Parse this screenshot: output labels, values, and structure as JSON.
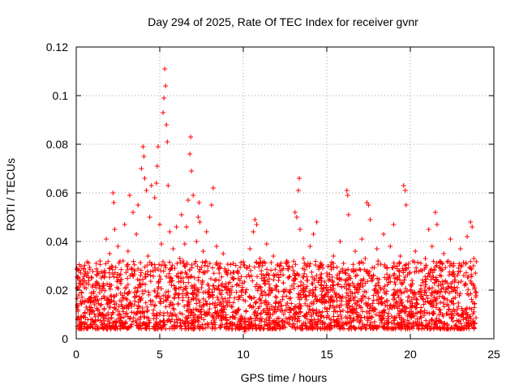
{
  "chart_data": {
    "type": "scatter",
    "title": "Day 294 of 2025, Rate Of TEC Index for receiver gvnr",
    "xlabel": "GPS time / hours",
    "ylabel": "ROTI / TECUs",
    "xlim": [
      0,
      25
    ],
    "ylim": [
      0,
      0.12
    ],
    "xticks": [
      "0",
      "5",
      "10",
      "15",
      "20",
      "25"
    ],
    "yticks": [
      "0",
      "0.02",
      "0.04",
      "0.06",
      "0.08",
      "0.1",
      "0.12"
    ],
    "grid": true,
    "marker": "+",
    "color": "#ff0000",
    "series": [
      {
        "points": [
          [
            0.05,
            0.029
          ],
          [
            0.1,
            0.012
          ],
          [
            0.15,
            0.018
          ],
          [
            0.2,
            0.024
          ],
          [
            0.3,
            0.009
          ],
          [
            0.4,
            0.015
          ],
          [
            0.5,
            0.021
          ],
          [
            0.6,
            0.013
          ],
          [
            0.7,
            0.027
          ],
          [
            0.8,
            0.011
          ],
          [
            0.9,
            0.017
          ],
          [
            1.0,
            0.022
          ],
          [
            1.1,
            0.014
          ],
          [
            1.2,
            0.031
          ],
          [
            1.3,
            0.012
          ],
          [
            1.4,
            0.019
          ],
          [
            1.5,
            0.025
          ],
          [
            1.6,
            0.01
          ],
          [
            1.7,
            0.028
          ],
          [
            1.8,
            0.041
          ],
          [
            1.9,
            0.016
          ],
          [
            2.0,
            0.035
          ],
          [
            2.1,
            0.022
          ],
          [
            2.2,
            0.06
          ],
          [
            2.25,
            0.056
          ],
          [
            2.3,
            0.045
          ],
          [
            2.4,
            0.018
          ],
          [
            2.5,
            0.038
          ],
          [
            2.6,
            0.026
          ],
          [
            2.7,
            0.014
          ],
          [
            2.8,
            0.032
          ],
          [
            2.9,
            0.047
          ],
          [
            3.0,
            0.021
          ],
          [
            3.1,
            0.036
          ],
          [
            3.2,
            0.059
          ],
          [
            3.3,
            0.029
          ],
          [
            3.4,
            0.052
          ],
          [
            3.5,
            0.017
          ],
          [
            3.6,
            0.043
          ],
          [
            3.7,
            0.055
          ],
          [
            3.8,
            0.024
          ],
          [
            3.9,
            0.07
          ],
          [
            4.0,
            0.079
          ],
          [
            4.05,
            0.075
          ],
          [
            4.1,
            0.066
          ],
          [
            4.2,
            0.061
          ],
          [
            4.3,
            0.034
          ],
          [
            4.4,
            0.05
          ],
          [
            4.5,
            0.063
          ],
          [
            4.6,
            0.028
          ],
          [
            4.7,
            0.058
          ],
          [
            4.8,
            0.064
          ],
          [
            4.85,
            0.071
          ],
          [
            4.9,
            0.079
          ],
          [
            5.0,
            0.047
          ],
          [
            5.1,
            0.039
          ],
          [
            5.2,
            0.093
          ],
          [
            5.25,
            0.099
          ],
          [
            5.3,
            0.111
          ],
          [
            5.35,
            0.104
          ],
          [
            5.4,
            0.088
          ],
          [
            5.45,
            0.081
          ],
          [
            5.5,
            0.063
          ],
          [
            5.6,
            0.044
          ],
          [
            5.7,
            0.022
          ],
          [
            5.8,
            0.037
          ],
          [
            5.9,
            0.029
          ],
          [
            6.0,
            0.046
          ],
          [
            6.1,
            0.018
          ],
          [
            6.2,
            0.033
          ],
          [
            6.3,
            0.051
          ],
          [
            6.4,
            0.025
          ],
          [
            6.5,
            0.039
          ],
          [
            6.6,
            0.046
          ],
          [
            6.7,
            0.057
          ],
          [
            6.8,
            0.076
          ],
          [
            6.85,
            0.083
          ],
          [
            6.9,
            0.069
          ],
          [
            7.0,
            0.059
          ],
          [
            7.1,
            0.031
          ],
          [
            7.2,
            0.04
          ],
          [
            7.3,
            0.05
          ],
          [
            7.35,
            0.056
          ],
          [
            7.4,
            0.048
          ],
          [
            7.5,
            0.021
          ],
          [
            7.6,
            0.036
          ],
          [
            7.7,
            0.027
          ],
          [
            7.8,
            0.044
          ],
          [
            7.9,
            0.019
          ],
          [
            8.0,
            0.031
          ],
          [
            8.1,
            0.055
          ],
          [
            8.2,
            0.062
          ],
          [
            8.3,
            0.024
          ],
          [
            8.4,
            0.038
          ],
          [
            8.5,
            0.016
          ],
          [
            8.6,
            0.029
          ],
          [
            8.7,
            0.022
          ],
          [
            8.8,
            0.035
          ],
          [
            8.9,
            0.013
          ],
          [
            9.0,
            0.027
          ],
          [
            9.2,
            0.018
          ],
          [
            9.4,
            0.031
          ],
          [
            9.6,
            0.011
          ],
          [
            9.8,
            0.024
          ],
          [
            10.0,
            0.016
          ],
          [
            10.1,
            0.003
          ],
          [
            10.2,
            0.029
          ],
          [
            10.4,
            0.037
          ],
          [
            10.6,
            0.044
          ],
          [
            10.7,
            0.049
          ],
          [
            10.8,
            0.047
          ],
          [
            11.0,
            0.033
          ],
          [
            11.2,
            0.026
          ],
          [
            11.4,
            0.039
          ],
          [
            11.6,
            0.021
          ],
          [
            11.8,
            0.034
          ],
          [
            12.0,
            0.017
          ],
          [
            12.2,
            0.028
          ],
          [
            12.4,
            0.023
          ],
          [
            12.6,
            0.032
          ],
          [
            12.8,
            0.019
          ],
          [
            13.0,
            0.028
          ],
          [
            13.1,
            0.052
          ],
          [
            13.2,
            0.05
          ],
          [
            13.3,
            0.061
          ],
          [
            13.35,
            0.066
          ],
          [
            13.4,
            0.045
          ],
          [
            13.6,
            0.033
          ],
          [
            13.8,
            0.024
          ],
          [
            14.0,
            0.038
          ],
          [
            14.2,
            0.043
          ],
          [
            14.4,
            0.048
          ],
          [
            14.6,
            0.03
          ],
          [
            14.8,
            0.021
          ],
          [
            15.0,
            0.027
          ],
          [
            15.2,
            0.015
          ],
          [
            15.4,
            0.034
          ],
          [
            15.6,
            0.025
          ],
          [
            15.8,
            0.04
          ],
          [
            16.0,
            0.031
          ],
          [
            16.2,
            0.061
          ],
          [
            16.25,
            0.059
          ],
          [
            16.3,
            0.051
          ],
          [
            16.5,
            0.028
          ],
          [
            16.7,
            0.036
          ],
          [
            16.9,
            0.022
          ],
          [
            17.1,
            0.041
          ],
          [
            17.3,
            0.033
          ],
          [
            17.4,
            0.056
          ],
          [
            17.5,
            0.055
          ],
          [
            17.6,
            0.049
          ],
          [
            17.8,
            0.026
          ],
          [
            18.0,
            0.037
          ],
          [
            18.2,
            0.021
          ],
          [
            18.4,
            0.043
          ],
          [
            18.6,
            0.029
          ],
          [
            18.8,
            0.038
          ],
          [
            19.0,
            0.047
          ],
          [
            19.2,
            0.025
          ],
          [
            19.4,
            0.034
          ],
          [
            19.6,
            0.063
          ],
          [
            19.7,
            0.061
          ],
          [
            19.75,
            0.055
          ],
          [
            19.9,
            0.031
          ],
          [
            20.1,
            0.024
          ],
          [
            20.3,
            0.036
          ],
          [
            20.5,
            0.019
          ],
          [
            20.7,
            0.028
          ],
          [
            20.9,
            0.033
          ],
          [
            21.1,
            0.045
          ],
          [
            21.3,
            0.038
          ],
          [
            21.5,
            0.052
          ],
          [
            21.6,
            0.047
          ],
          [
            21.8,
            0.029
          ],
          [
            22.0,
            0.035
          ],
          [
            22.2,
            0.023
          ],
          [
            22.4,
            0.041
          ],
          [
            22.6,
            0.03
          ],
          [
            22.8,
            0.021
          ],
          [
            23.0,
            0.037
          ],
          [
            23.2,
            0.026
          ],
          [
            23.4,
            0.042
          ],
          [
            23.6,
            0.048
          ],
          [
            23.7,
            0.046
          ],
          [
            23.8,
            0.033
          ],
          [
            23.9,
            0.027
          ],
          [
            23.95,
            0.019
          ]
        ]
      }
    ]
  }
}
